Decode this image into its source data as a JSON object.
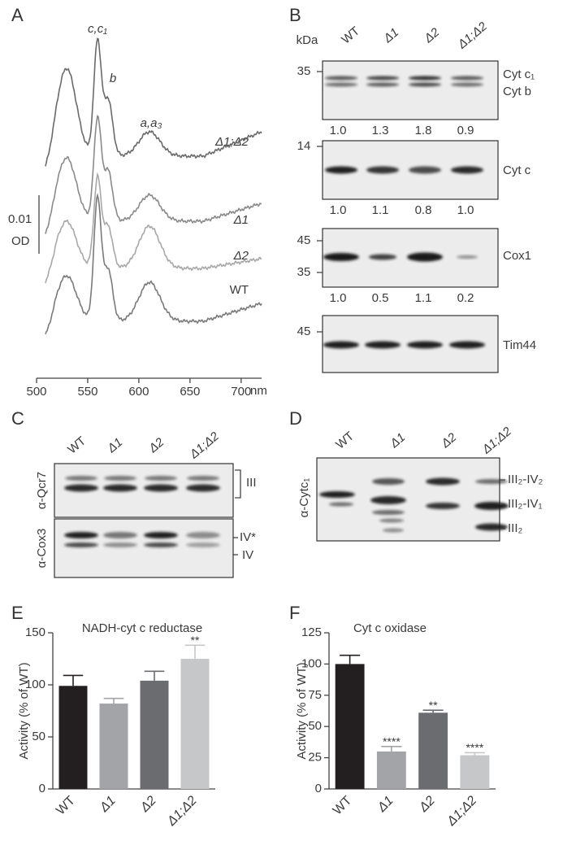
{
  "panel_labels": [
    "A",
    "B",
    "C",
    "D",
    "E",
    "F"
  ],
  "panel_a": {
    "peak_labels": [
      "c,c₁",
      "b",
      "a,a₃"
    ],
    "traces": [
      "Δ1;Δ2",
      "Δ1",
      "Δ2",
      "WT"
    ],
    "scale_value": "0.01",
    "scale_unit": "OD",
    "xlim": [
      500,
      720
    ],
    "xticks": [
      500,
      550,
      600,
      650,
      700
    ],
    "x_unit": "nm"
  },
  "panel_b": {
    "lanes": [
      "WT",
      "Δ1",
      "Δ2",
      "Δ1;Δ2"
    ],
    "unit": "kDa",
    "blots": [
      {
        "markers": [
          "35"
        ],
        "labels": [
          "Cyt c₁",
          "Cyt b"
        ],
        "quant": [
          "1.0",
          "1.3",
          "1.8",
          "0.9"
        ]
      },
      {
        "markers": [
          "14"
        ],
        "labels": [
          "Cyt c"
        ],
        "quant": [
          "1.0",
          "1.1",
          "0.8",
          "1.0"
        ]
      },
      {
        "markers": [
          "45",
          "35"
        ],
        "labels": [
          "Cox1"
        ],
        "quant": [
          "1.0",
          "0.5",
          "1.1",
          "0.2"
        ]
      },
      {
        "markers": [
          "45"
        ],
        "labels": [
          "Tim44"
        ]
      }
    ]
  },
  "panel_c": {
    "lanes": [
      "WT",
      "Δ1",
      "Δ2",
      "Δ1;Δ2"
    ],
    "blots": [
      {
        "antibody": "α-Qcr7",
        "labels": [
          "III"
        ]
      },
      {
        "antibody": "α-Cox3",
        "labels": [
          "IV*",
          "IV"
        ]
      }
    ]
  },
  "panel_d": {
    "lanes": [
      "WT",
      "Δ1",
      "Δ2",
      "Δ1;Δ2"
    ],
    "antibody": "α-Cytc₁",
    "labels": [
      "III₂-IV₂",
      "III₂-IV₁",
      "III₂"
    ]
  },
  "chart_data": [
    {
      "type": "bar",
      "title": "NADH-cyt c reductase",
      "y_label": "Activity (% of WT)",
      "categories": [
        "WT",
        "Δ1",
        "Δ2",
        "Δ1;Δ2"
      ],
      "values": [
        99,
        82,
        104,
        125
      ],
      "errors": [
        10,
        5,
        9,
        13
      ],
      "significance": [
        null,
        null,
        null,
        "**"
      ],
      "colors": [
        "#231f20",
        "#a3a4a7",
        "#6b6c6f",
        "#c6c7c9"
      ],
      "ylim": [
        0,
        150
      ],
      "yticks": [
        0,
        50,
        100,
        150
      ]
    },
    {
      "type": "bar",
      "title": "Cyt c oxidase",
      "y_label": "Activity (% of WT)",
      "categories": [
        "WT",
        "Δ1",
        "Δ2",
        "Δ1;Δ2"
      ],
      "values": [
        100,
        30,
        61,
        27
      ],
      "errors": [
        7,
        4,
        2,
        2
      ],
      "significance": [
        null,
        "****",
        "**",
        "****"
      ],
      "colors": [
        "#231f20",
        "#a3a4a7",
        "#6b6c6f",
        "#c6c7c9"
      ],
      "ylim": [
        0,
        125
      ],
      "yticks": [
        0,
        25,
        50,
        75,
        100,
        125
      ]
    }
  ]
}
